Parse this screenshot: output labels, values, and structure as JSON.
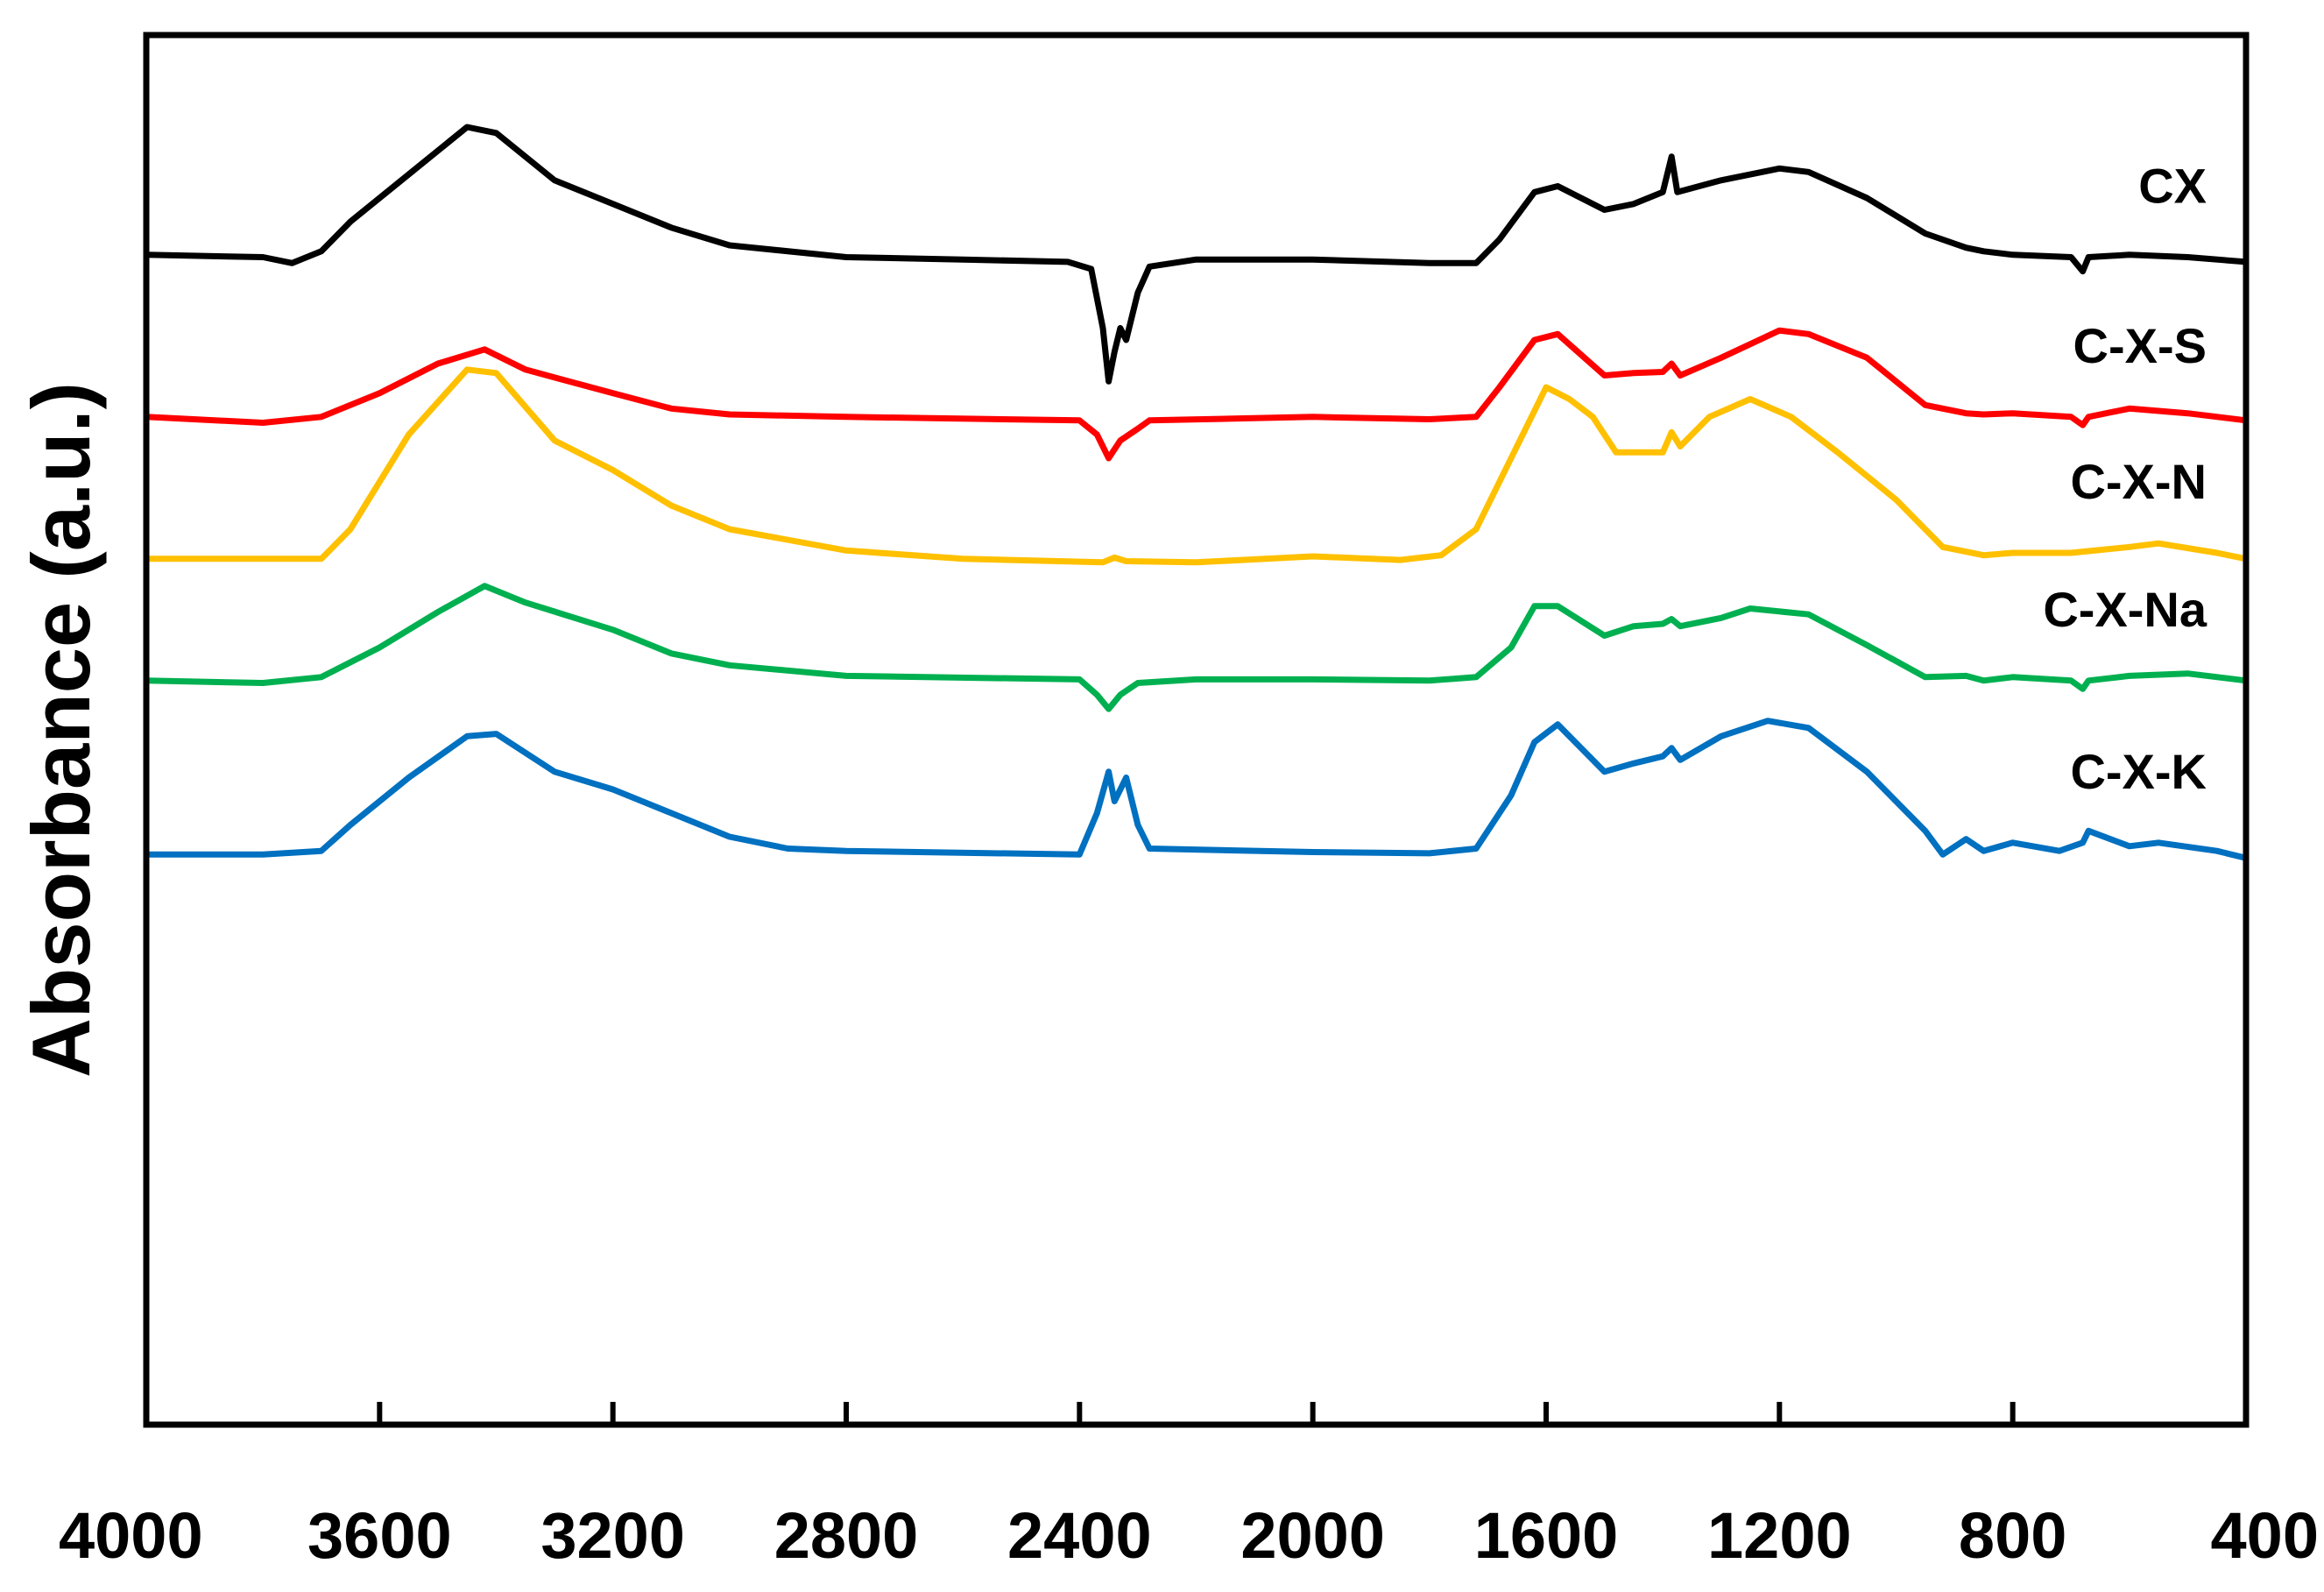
{
  "chart_data": {
    "type": "line",
    "title": "",
    "xlabel": "",
    "ylabel": "Absorbance (a.u.)",
    "xlim": [
      4000,
      400
    ],
    "x_reversed": true,
    "ylim": [
      0,
      10
    ],
    "y_ticks_shown": false,
    "grid": false,
    "legend": "inline-right",
    "x_ticks": [
      "4000",
      "3600",
      "3200",
      "2800",
      "2400",
      "2000",
      "1600",
      "1200",
      "800",
      "400"
    ],
    "series": [
      {
        "name": "CX",
        "color": "#000000",
        "points": [
          [
            4000,
            8.92
          ],
          [
            3800,
            8.9
          ],
          [
            3750,
            8.85
          ],
          [
            3700,
            8.95
          ],
          [
            3650,
            9.2
          ],
          [
            3550,
            9.6
          ],
          [
            3450,
            10.0
          ],
          [
            3400,
            9.95
          ],
          [
            3300,
            9.55
          ],
          [
            3200,
            9.35
          ],
          [
            3100,
            9.15
          ],
          [
            3000,
            9.0
          ],
          [
            2800,
            8.9
          ],
          [
            2600,
            8.88
          ],
          [
            2420,
            8.86
          ],
          [
            2380,
            8.8
          ],
          [
            2360,
            8.3
          ],
          [
            2350,
            7.85
          ],
          [
            2340,
            8.1
          ],
          [
            2330,
            8.3
          ],
          [
            2320,
            8.2
          ],
          [
            2300,
            8.6
          ],
          [
            2280,
            8.82
          ],
          [
            2200,
            8.88
          ],
          [
            2000,
            8.88
          ],
          [
            1800,
            8.85
          ],
          [
            1720,
            8.85
          ],
          [
            1680,
            9.05
          ],
          [
            1620,
            9.45
          ],
          [
            1580,
            9.5
          ],
          [
            1500,
            9.3
          ],
          [
            1450,
            9.35
          ],
          [
            1400,
            9.45
          ],
          [
            1385,
            9.75
          ],
          [
            1375,
            9.45
          ],
          [
            1300,
            9.55
          ],
          [
            1200,
            9.65
          ],
          [
            1150,
            9.62
          ],
          [
            1050,
            9.4
          ],
          [
            950,
            9.1
          ],
          [
            880,
            8.98
          ],
          [
            850,
            8.95
          ],
          [
            800,
            8.92
          ],
          [
            700,
            8.9
          ],
          [
            680,
            8.78
          ],
          [
            670,
            8.9
          ],
          [
            600,
            8.92
          ],
          [
            500,
            8.9
          ],
          [
            400,
            8.86
          ]
        ]
      },
      {
        "name": "C-X-S",
        "color": "#ff0000",
        "points": [
          [
            4000,
            7.55
          ],
          [
            3800,
            7.5
          ],
          [
            3700,
            7.55
          ],
          [
            3600,
            7.75
          ],
          [
            3500,
            8.0
          ],
          [
            3420,
            8.12
          ],
          [
            3350,
            7.95
          ],
          [
            3200,
            7.75
          ],
          [
            3100,
            7.62
          ],
          [
            3000,
            7.57
          ],
          [
            2800,
            7.55
          ],
          [
            2400,
            7.52
          ],
          [
            2370,
            7.4
          ],
          [
            2350,
            7.2
          ],
          [
            2330,
            7.35
          ],
          [
            2300,
            7.45
          ],
          [
            2280,
            7.52
          ],
          [
            2000,
            7.55
          ],
          [
            1800,
            7.53
          ],
          [
            1720,
            7.55
          ],
          [
            1680,
            7.8
          ],
          [
            1620,
            8.2
          ],
          [
            1580,
            8.25
          ],
          [
            1500,
            7.9
          ],
          [
            1450,
            7.92
          ],
          [
            1400,
            7.93
          ],
          [
            1385,
            8.0
          ],
          [
            1370,
            7.9
          ],
          [
            1300,
            8.05
          ],
          [
            1200,
            8.28
          ],
          [
            1150,
            8.25
          ],
          [
            1050,
            8.05
          ],
          [
            950,
            7.65
          ],
          [
            880,
            7.58
          ],
          [
            850,
            7.57
          ],
          [
            800,
            7.58
          ],
          [
            700,
            7.55
          ],
          [
            680,
            7.48
          ],
          [
            670,
            7.55
          ],
          [
            600,
            7.62
          ],
          [
            500,
            7.58
          ],
          [
            400,
            7.52
          ]
        ]
      },
      {
        "name": "C-X-N",
        "color": "#ffc000",
        "points": [
          [
            4000,
            6.35
          ],
          [
            3800,
            6.35
          ],
          [
            3700,
            6.35
          ],
          [
            3650,
            6.6
          ],
          [
            3550,
            7.4
          ],
          [
            3450,
            7.95
          ],
          [
            3400,
            7.92
          ],
          [
            3300,
            7.35
          ],
          [
            3200,
            7.1
          ],
          [
            3100,
            6.8
          ],
          [
            3000,
            6.6
          ],
          [
            2800,
            6.42
          ],
          [
            2600,
            6.35
          ],
          [
            2360,
            6.32
          ],
          [
            2340,
            6.36
          ],
          [
            2320,
            6.33
          ],
          [
            2200,
            6.32
          ],
          [
            2000,
            6.37
          ],
          [
            1850,
            6.34
          ],
          [
            1780,
            6.38
          ],
          [
            1720,
            6.6
          ],
          [
            1660,
            7.2
          ],
          [
            1600,
            7.8
          ],
          [
            1560,
            7.7
          ],
          [
            1520,
            7.55
          ],
          [
            1480,
            7.25
          ],
          [
            1440,
            7.25
          ],
          [
            1400,
            7.25
          ],
          [
            1385,
            7.42
          ],
          [
            1370,
            7.3
          ],
          [
            1320,
            7.55
          ],
          [
            1250,
            7.7
          ],
          [
            1180,
            7.55
          ],
          [
            1100,
            7.25
          ],
          [
            1000,
            6.85
          ],
          [
            920,
            6.45
          ],
          [
            850,
            6.38
          ],
          [
            800,
            6.4
          ],
          [
            700,
            6.4
          ],
          [
            600,
            6.45
          ],
          [
            550,
            6.48
          ],
          [
            450,
            6.4
          ],
          [
            400,
            6.35
          ]
        ]
      },
      {
        "name": "C-X-Na",
        "color": "#00b050",
        "points": [
          [
            4000,
            5.32
          ],
          [
            3800,
            5.3
          ],
          [
            3700,
            5.35
          ],
          [
            3600,
            5.6
          ],
          [
            3500,
            5.9
          ],
          [
            3420,
            6.12
          ],
          [
            3350,
            5.98
          ],
          [
            3200,
            5.75
          ],
          [
            3100,
            5.55
          ],
          [
            3000,
            5.45
          ],
          [
            2800,
            5.36
          ],
          [
            2400,
            5.33
          ],
          [
            2370,
            5.2
          ],
          [
            2350,
            5.08
          ],
          [
            2330,
            5.2
          ],
          [
            2300,
            5.3
          ],
          [
            2200,
            5.33
          ],
          [
            2000,
            5.33
          ],
          [
            1800,
            5.32
          ],
          [
            1720,
            5.35
          ],
          [
            1660,
            5.6
          ],
          [
            1620,
            5.95
          ],
          [
            1580,
            5.95
          ],
          [
            1500,
            5.7
          ],
          [
            1450,
            5.78
          ],
          [
            1400,
            5.8
          ],
          [
            1385,
            5.84
          ],
          [
            1370,
            5.78
          ],
          [
            1300,
            5.85
          ],
          [
            1250,
            5.93
          ],
          [
            1150,
            5.88
          ],
          [
            1050,
            5.62
          ],
          [
            950,
            5.35
          ],
          [
            880,
            5.36
          ],
          [
            850,
            5.32
          ],
          [
            800,
            5.35
          ],
          [
            700,
            5.32
          ],
          [
            680,
            5.25
          ],
          [
            670,
            5.32
          ],
          [
            600,
            5.36
          ],
          [
            500,
            5.38
          ],
          [
            400,
            5.32
          ]
        ]
      },
      {
        "name": "C-X-K",
        "color": "#0070c0",
        "points": [
          [
            4000,
            3.85
          ],
          [
            3800,
            3.85
          ],
          [
            3700,
            3.88
          ],
          [
            3650,
            4.1
          ],
          [
            3550,
            4.5
          ],
          [
            3450,
            4.85
          ],
          [
            3400,
            4.87
          ],
          [
            3300,
            4.55
          ],
          [
            3200,
            4.4
          ],
          [
            3100,
            4.2
          ],
          [
            3000,
            4.0
          ],
          [
            2900,
            3.9
          ],
          [
            2800,
            3.88
          ],
          [
            2400,
            3.85
          ],
          [
            2370,
            4.2
          ],
          [
            2350,
            4.55
          ],
          [
            2340,
            4.3
          ],
          [
            2320,
            4.5
          ],
          [
            2300,
            4.1
          ],
          [
            2280,
            3.9
          ],
          [
            2000,
            3.87
          ],
          [
            1800,
            3.86
          ],
          [
            1720,
            3.9
          ],
          [
            1660,
            4.35
          ],
          [
            1620,
            4.8
          ],
          [
            1580,
            4.95
          ],
          [
            1500,
            4.55
          ],
          [
            1450,
            4.62
          ],
          [
            1400,
            4.68
          ],
          [
            1385,
            4.75
          ],
          [
            1370,
            4.65
          ],
          [
            1300,
            4.85
          ],
          [
            1220,
            4.98
          ],
          [
            1150,
            4.92
          ],
          [
            1050,
            4.55
          ],
          [
            950,
            4.05
          ],
          [
            920,
            3.85
          ],
          [
            880,
            3.98
          ],
          [
            850,
            3.88
          ],
          [
            800,
            3.95
          ],
          [
            720,
            3.88
          ],
          [
            680,
            3.95
          ],
          [
            670,
            4.05
          ],
          [
            600,
            3.92
          ],
          [
            550,
            3.95
          ],
          [
            450,
            3.88
          ],
          [
            400,
            3.82
          ]
        ]
      }
    ]
  }
}
